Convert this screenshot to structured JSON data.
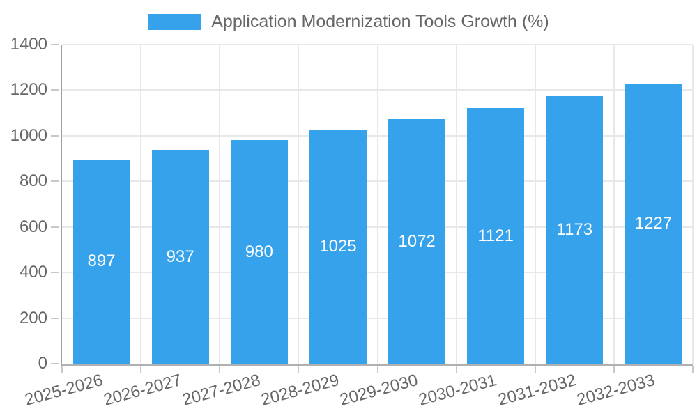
{
  "chart_data": {
    "type": "bar",
    "title": "Application Modernization Tools Growth (%)",
    "legend": {
      "position": "top",
      "entries": [
        "Application Modernization Tools Growth (%)"
      ]
    },
    "categories": [
      "2025-2026",
      "2026-2027",
      "2027-2028",
      "2028-2029",
      "2029-2030",
      "2030-2031",
      "2031-2032",
      "2032-2033"
    ],
    "values": [
      897,
      937,
      980,
      1025,
      1072,
      1121,
      1173,
      1227
    ],
    "value_labels_shown": true,
    "xlabel": "",
    "ylabel": "",
    "ylim": [
      0,
      1400
    ],
    "ytick_step": 200,
    "yticks": [
      0,
      200,
      400,
      600,
      800,
      1000,
      1200,
      1400
    ],
    "grid": true,
    "x_label_rotation_deg": -15,
    "colors": {
      "bar": "#36A2EB",
      "value_label": "#FFFFFF",
      "tick_label": "#666666",
      "legend_label": "#666666",
      "grid_line": "#E8E8E8",
      "tick_mark": "#C8C8C8",
      "axis_line": "#A0A0A0",
      "background": "#FFFFFF"
    }
  }
}
